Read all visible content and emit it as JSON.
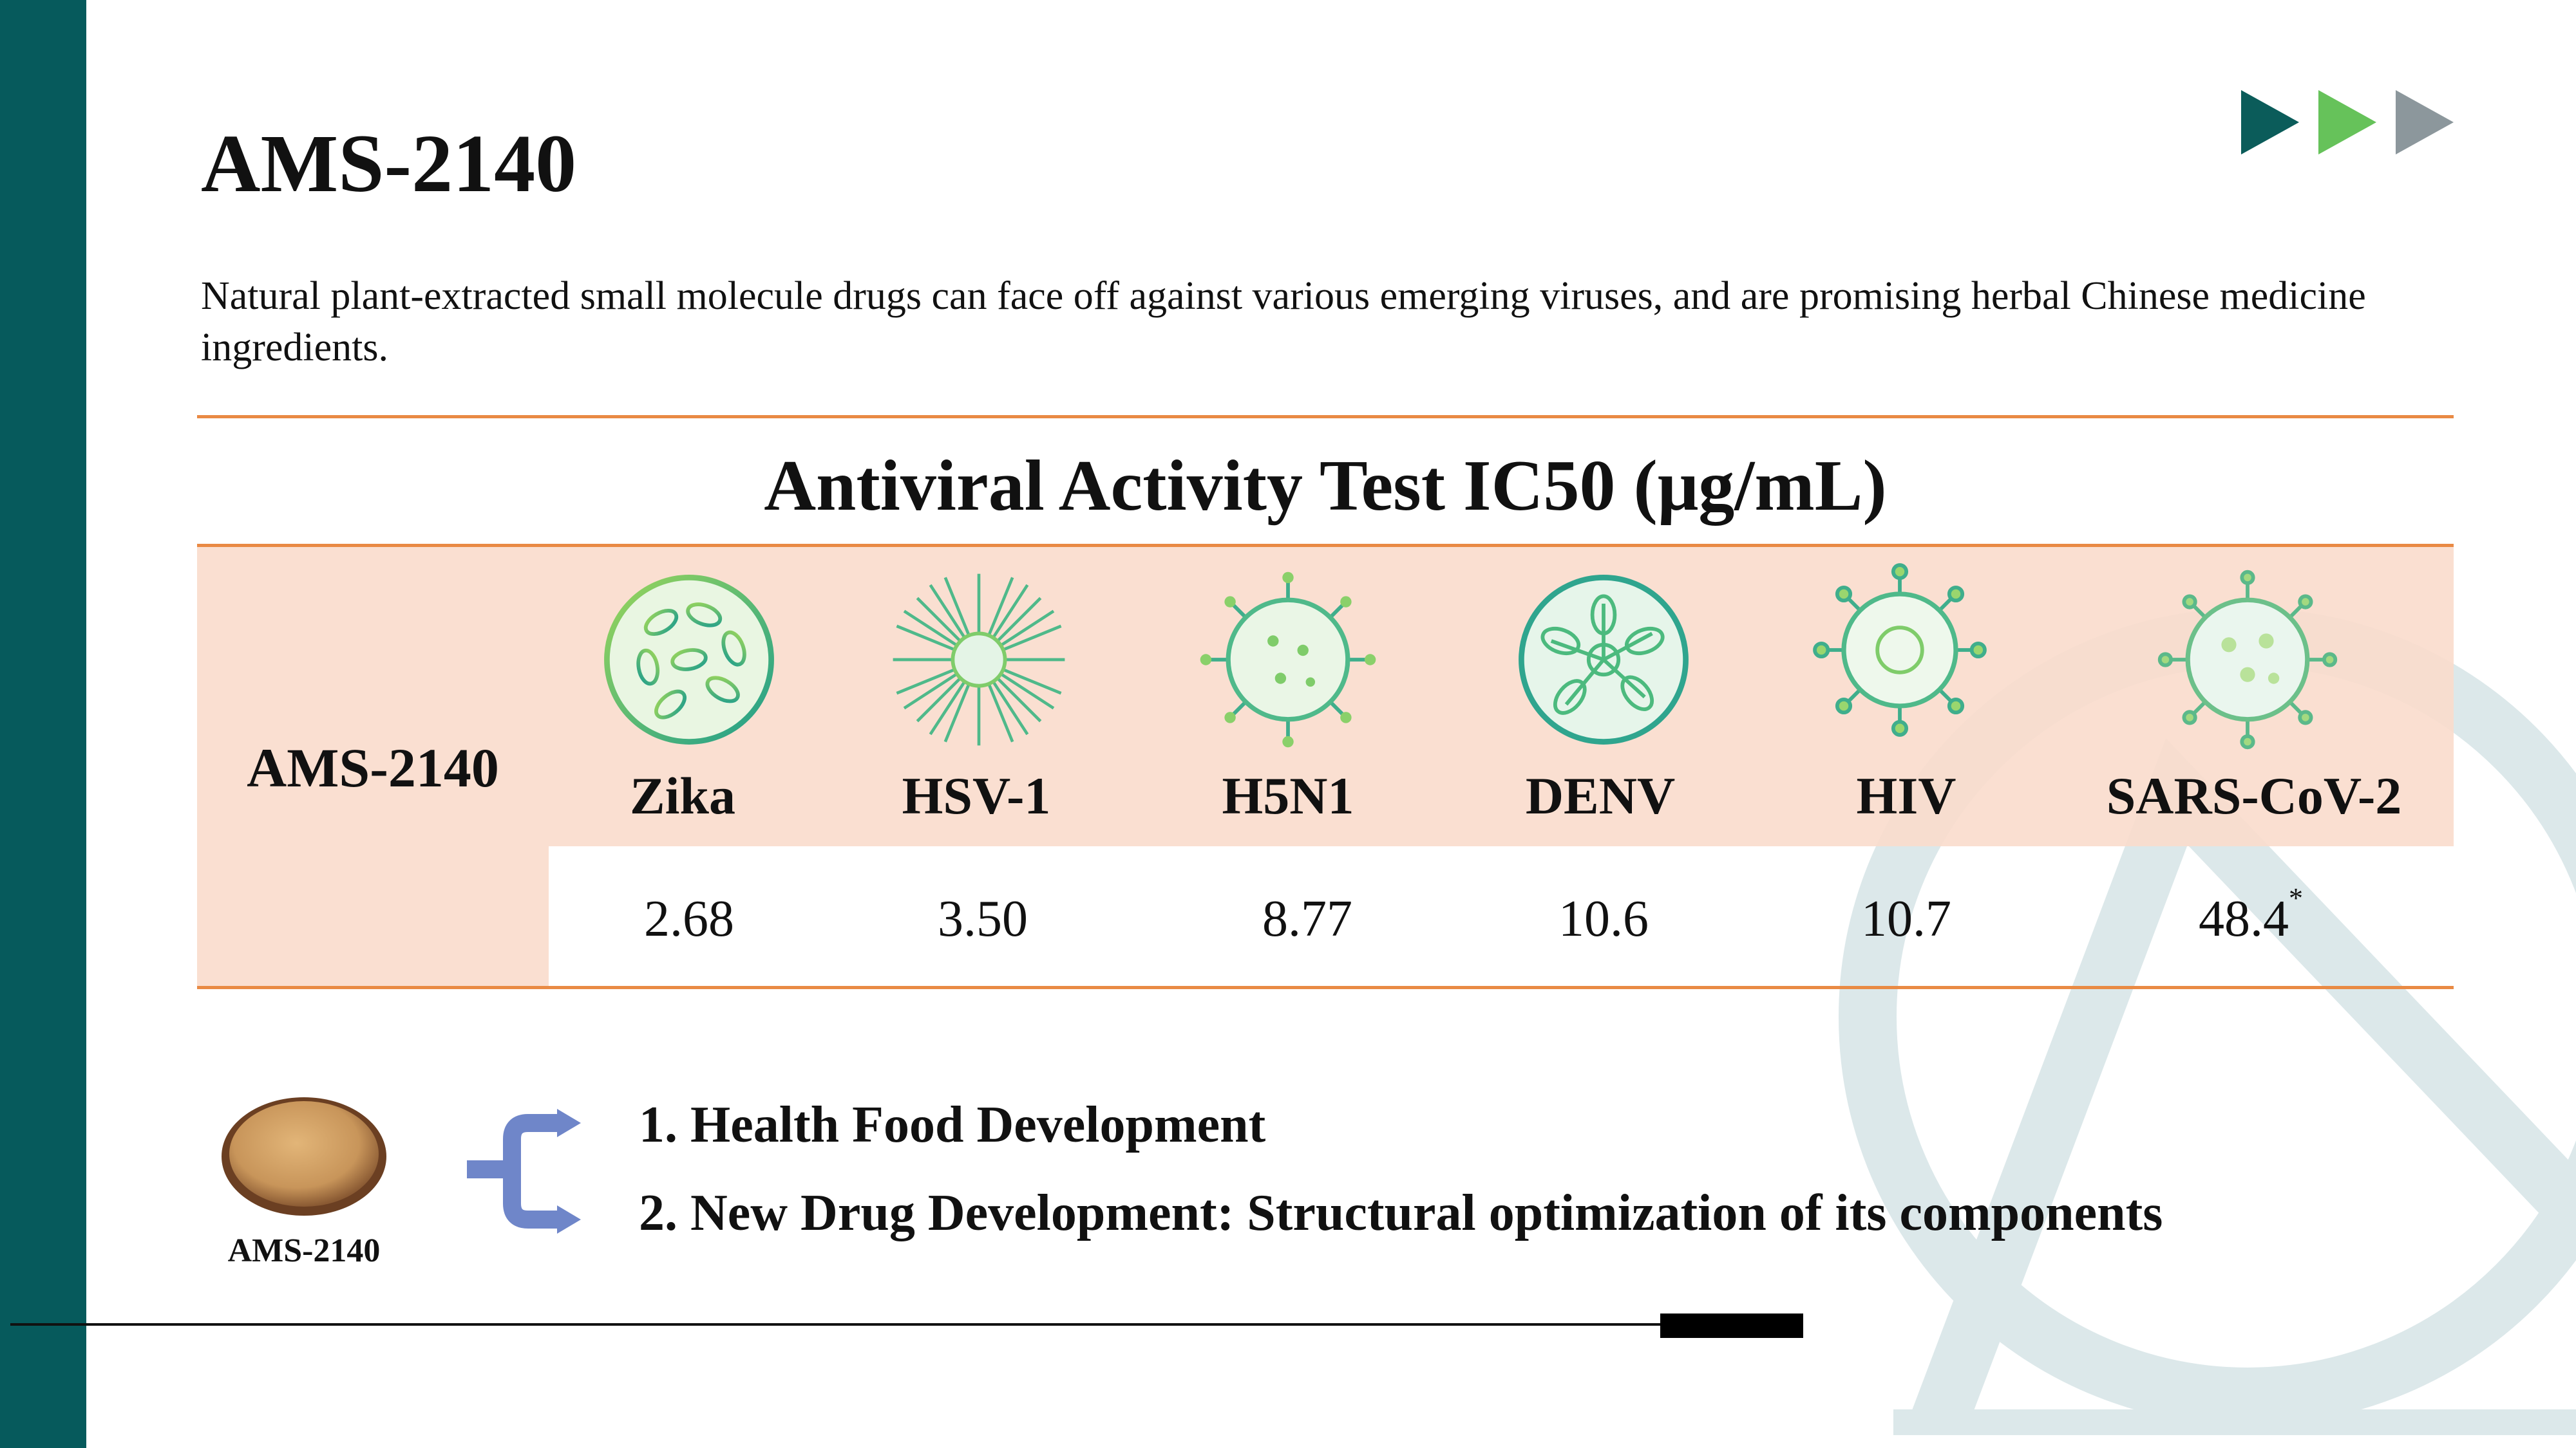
{
  "title": "AMS-2140",
  "subtitle": "Natural plant-extracted small molecule drugs can face off against various emerging viruses, and are promising herbal Chinese medicine ingredients.",
  "table": {
    "title": "Antiviral Activity Test IC50 (μg/mL)",
    "row_label": "AMS-2140",
    "viruses": [
      {
        "name": "Zika",
        "value": "2.68",
        "icon": "zika-virus-icon"
      },
      {
        "name": "HSV-1",
        "value": "3.50",
        "icon": "hsv1-virus-icon"
      },
      {
        "name": "H5N1",
        "value": "8.77",
        "icon": "h5n1-virus-icon"
      },
      {
        "name": "DENV",
        "value": "10.6",
        "icon": "denv-virus-icon"
      },
      {
        "name": "HIV",
        "value": "10.7",
        "icon": "hiv-virus-icon"
      },
      {
        "name": "SARS-CoV-2",
        "value": "48.4",
        "note": "*",
        "icon": "sars-cov-2-virus-icon"
      }
    ]
  },
  "product": {
    "label": "AMS-2140",
    "icon": "herbal-powder-bowl-icon"
  },
  "developments": [
    "1. Health Food Development",
    "2. New Drug Development: Structural optimization of its components"
  ],
  "colors": {
    "sidebar": "#065a5c",
    "header_band": "#fbdccc",
    "rule": "#e98a44",
    "arrow_dark": "#0b5c5a",
    "arrow_green": "#66c25a",
    "arrow_gray": "#8c979c",
    "bracket": "#6f86c9",
    "watermark": "#dce8ea"
  }
}
